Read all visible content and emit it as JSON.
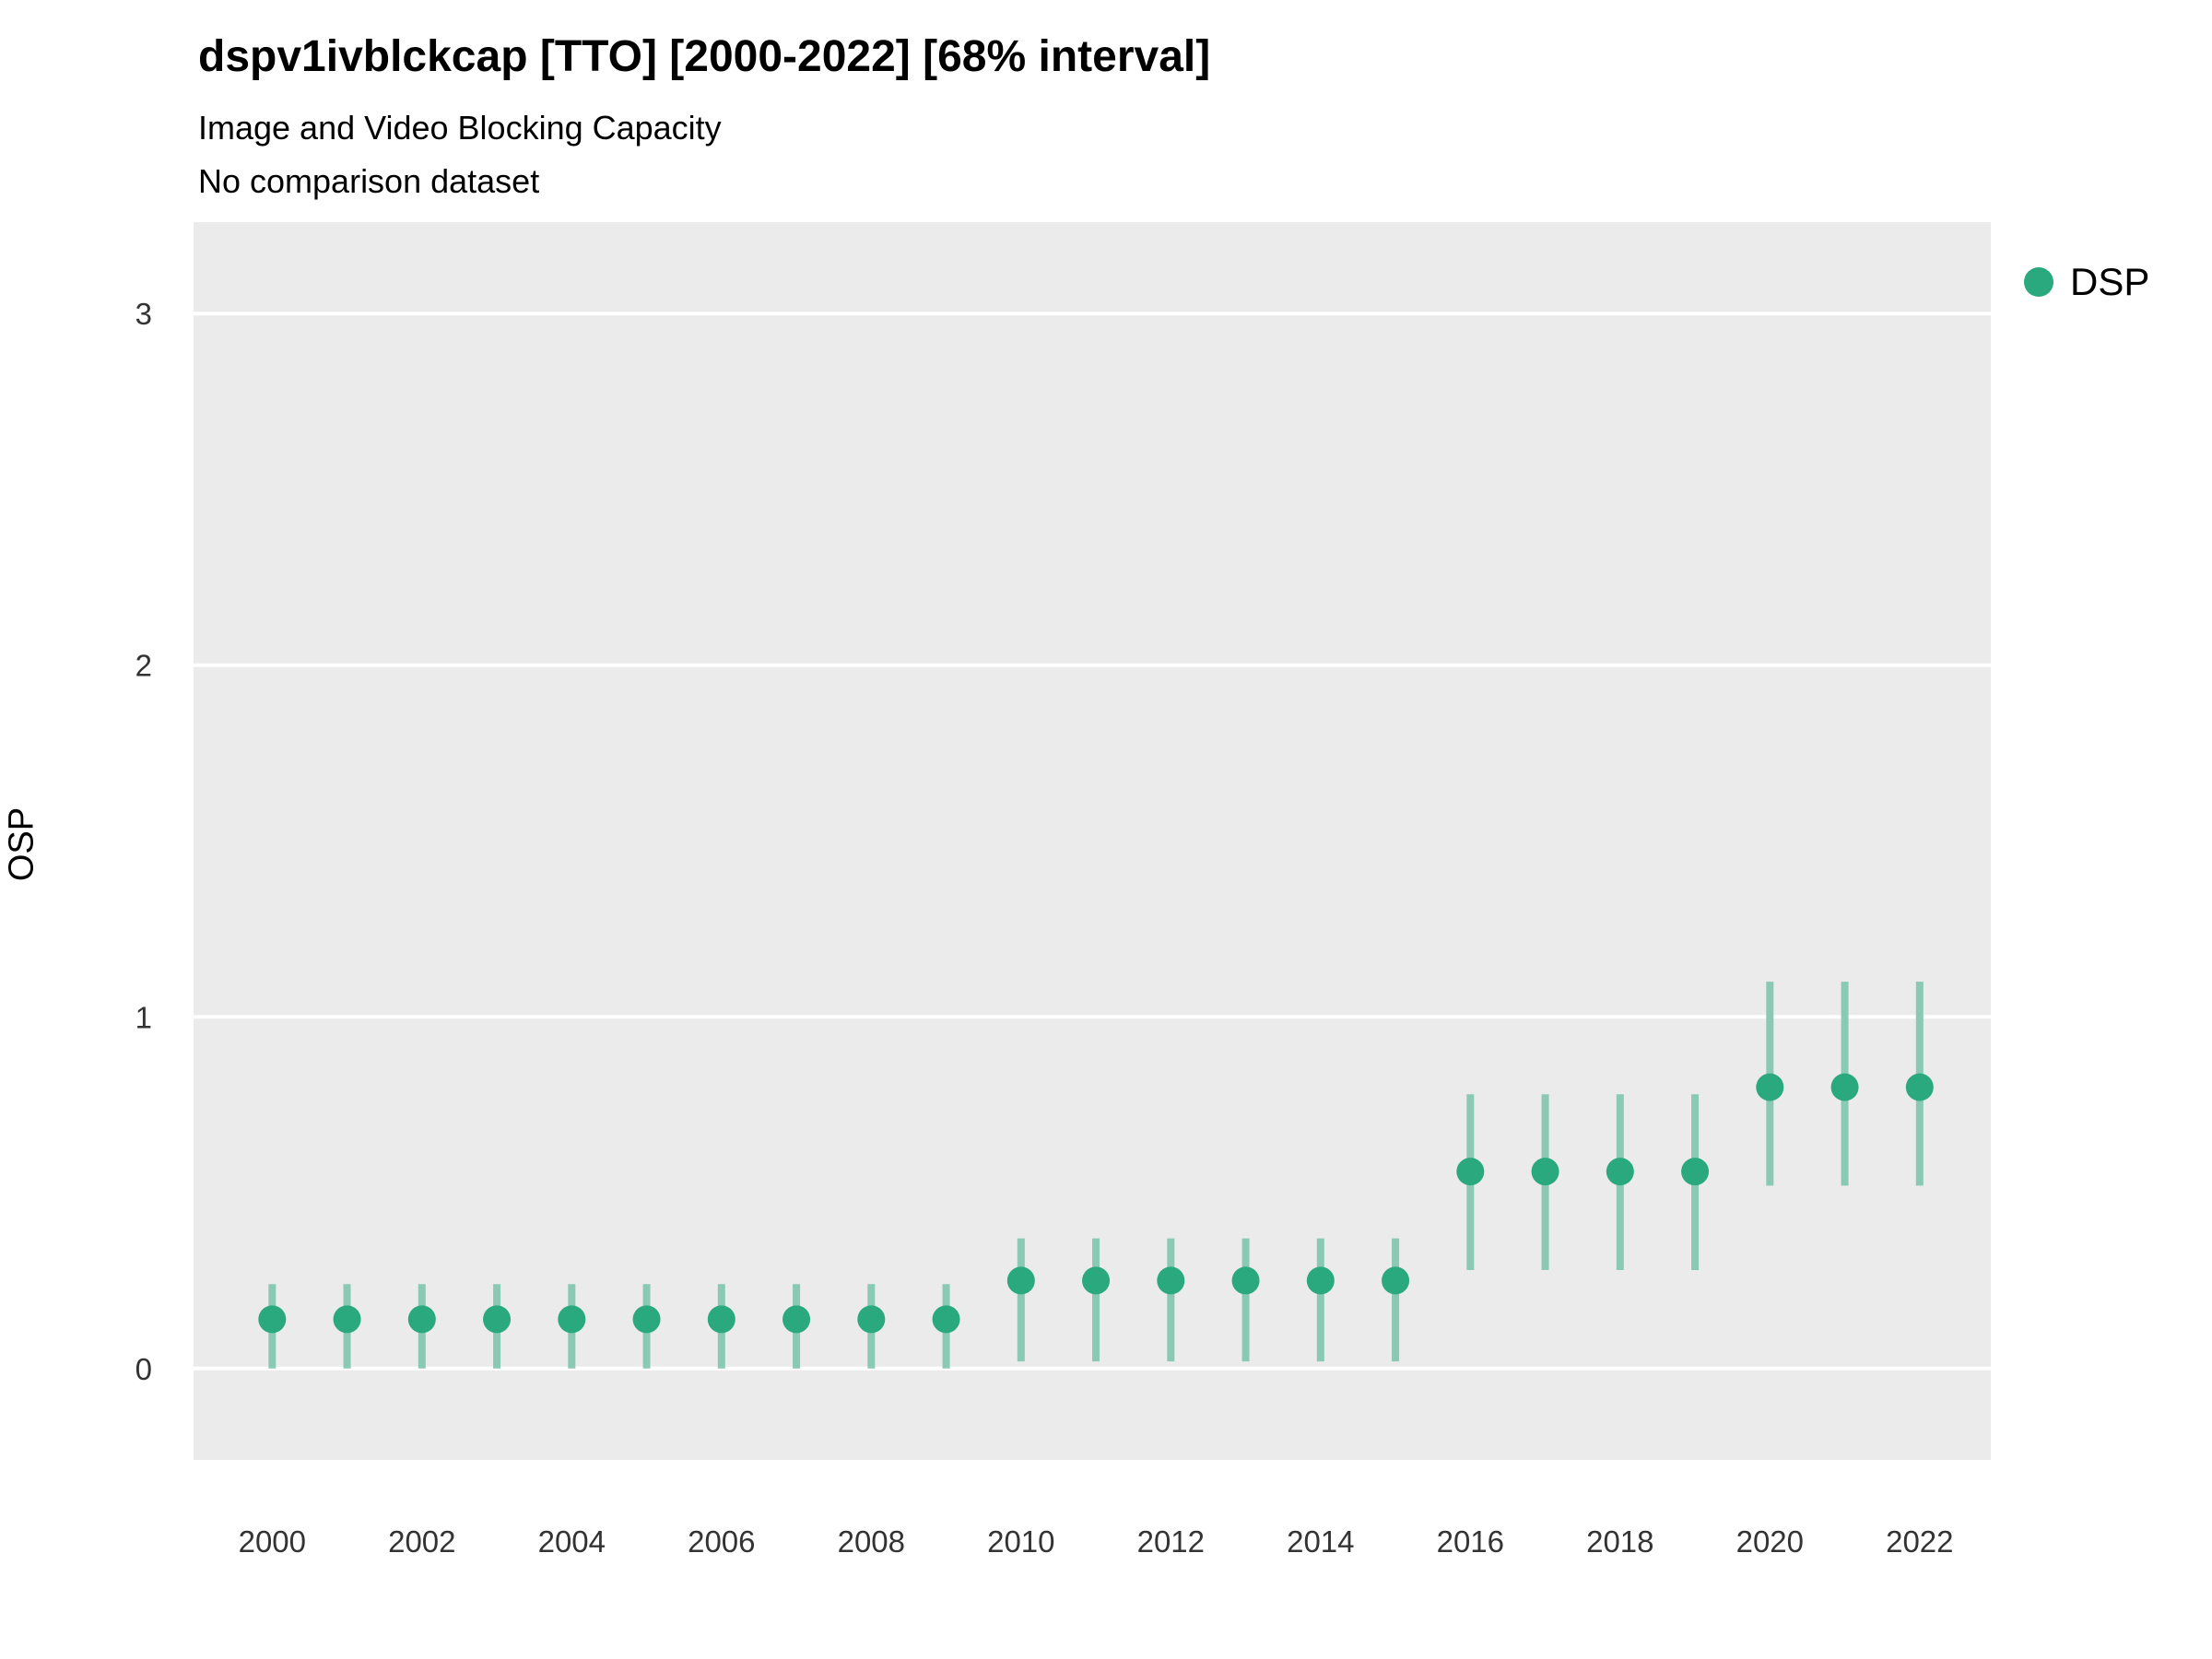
{
  "chart_data": {
    "type": "scatter",
    "title": "dspv1ivblckcap [TTO] [2000-2022] [68% interval]",
    "subtitle_lines": [
      "Image and Video Blocking Capacity",
      "No comparison dataset"
    ],
    "xlabel": "",
    "ylabel": "OSP",
    "legend_position": "right",
    "grid": true,
    "xlim": [
      1998.95,
      2022.95
    ],
    "ylim": [
      -0.26,
      3.26
    ],
    "yticks": [
      0,
      1,
      2,
      3
    ],
    "xticks": [
      2000,
      2002,
      2004,
      2006,
      2008,
      2010,
      2012,
      2014,
      2016,
      2018,
      2020,
      2022
    ],
    "colors": {
      "point": "#2aa87e",
      "interval": "#8ac9b4",
      "panel": "#ebebeb",
      "grid": "#ffffff",
      "tick_text": "#333333"
    },
    "series": [
      {
        "name": "DSP",
        "x": [
          2000,
          2001,
          2002,
          2003,
          2004,
          2005,
          2006,
          2007,
          2008,
          2009,
          2010,
          2011,
          2012,
          2013,
          2014,
          2015,
          2016,
          2017,
          2018,
          2019,
          2020,
          2021,
          2022
        ],
        "y": [
          0.14,
          0.14,
          0.14,
          0.14,
          0.14,
          0.14,
          0.14,
          0.14,
          0.14,
          0.14,
          0.25,
          0.25,
          0.25,
          0.25,
          0.25,
          0.25,
          0.56,
          0.56,
          0.56,
          0.56,
          0.8,
          0.8,
          0.8
        ],
        "y_low": [
          0.0,
          0.0,
          0.0,
          0.0,
          0.0,
          0.0,
          0.0,
          0.0,
          0.0,
          0.0,
          0.02,
          0.02,
          0.02,
          0.02,
          0.02,
          0.02,
          0.28,
          0.28,
          0.28,
          0.28,
          0.52,
          0.52,
          0.52
        ],
        "y_high": [
          0.24,
          0.24,
          0.24,
          0.24,
          0.24,
          0.24,
          0.24,
          0.24,
          0.24,
          0.24,
          0.37,
          0.37,
          0.37,
          0.37,
          0.37,
          0.37,
          0.78,
          0.78,
          0.78,
          0.78,
          1.1,
          1.1,
          1.1
        ]
      }
    ]
  }
}
